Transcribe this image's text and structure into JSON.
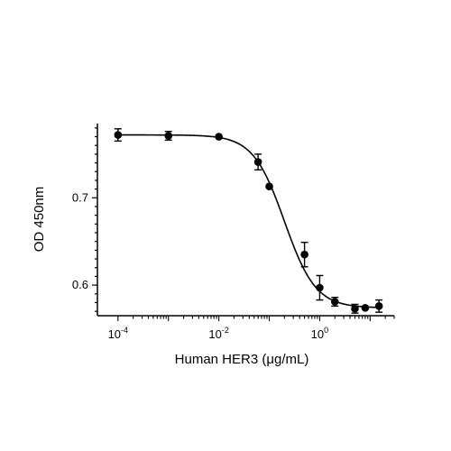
{
  "chart_data": {
    "type": "scatter",
    "xlabel": "Human HER3 (μg/mL)",
    "ylabel": "OD 450nm",
    "x_scale": "log",
    "xlim": [
      5e-05,
      30
    ],
    "ylim": [
      0.565,
      0.785
    ],
    "grid": false,
    "x_ticks": [
      {
        "value": 0.0001,
        "base": "10",
        "exp": "-4"
      },
      {
        "value": 0.01,
        "base": "10",
        "exp": "-2"
      },
      {
        "value": 1,
        "base": "10",
        "exp": "0"
      }
    ],
    "y_ticks": [
      {
        "value": 0.6,
        "label": "0.6"
      },
      {
        "value": 0.7,
        "label": "0.7"
      }
    ],
    "series": [
      {
        "points": [
          {
            "x": 0.0001,
            "y": 0.772,
            "err": 0.007
          },
          {
            "x": 0.001,
            "y": 0.771,
            "err": 0.005
          },
          {
            "x": 0.01,
            "y": 0.77,
            "err": 0.002
          },
          {
            "x": 0.06,
            "y": 0.741,
            "err": 0.009
          },
          {
            "x": 0.1,
            "y": 0.713,
            "err": 0.002
          },
          {
            "x": 0.5,
            "y": 0.635,
            "err": 0.014
          },
          {
            "x": 1,
            "y": 0.597,
            "err": 0.014
          },
          {
            "x": 2,
            "y": 0.581,
            "err": 0.005
          },
          {
            "x": 5,
            "y": 0.573,
            "err": 0.005
          },
          {
            "x": 8,
            "y": 0.574,
            "err": 0.002
          },
          {
            "x": 15,
            "y": 0.576,
            "err": 0.007
          }
        ]
      }
    ],
    "fit_curve": {
      "bottom": 0.574,
      "top": 0.772,
      "ec50": 0.2,
      "hill": 1.4
    }
  }
}
